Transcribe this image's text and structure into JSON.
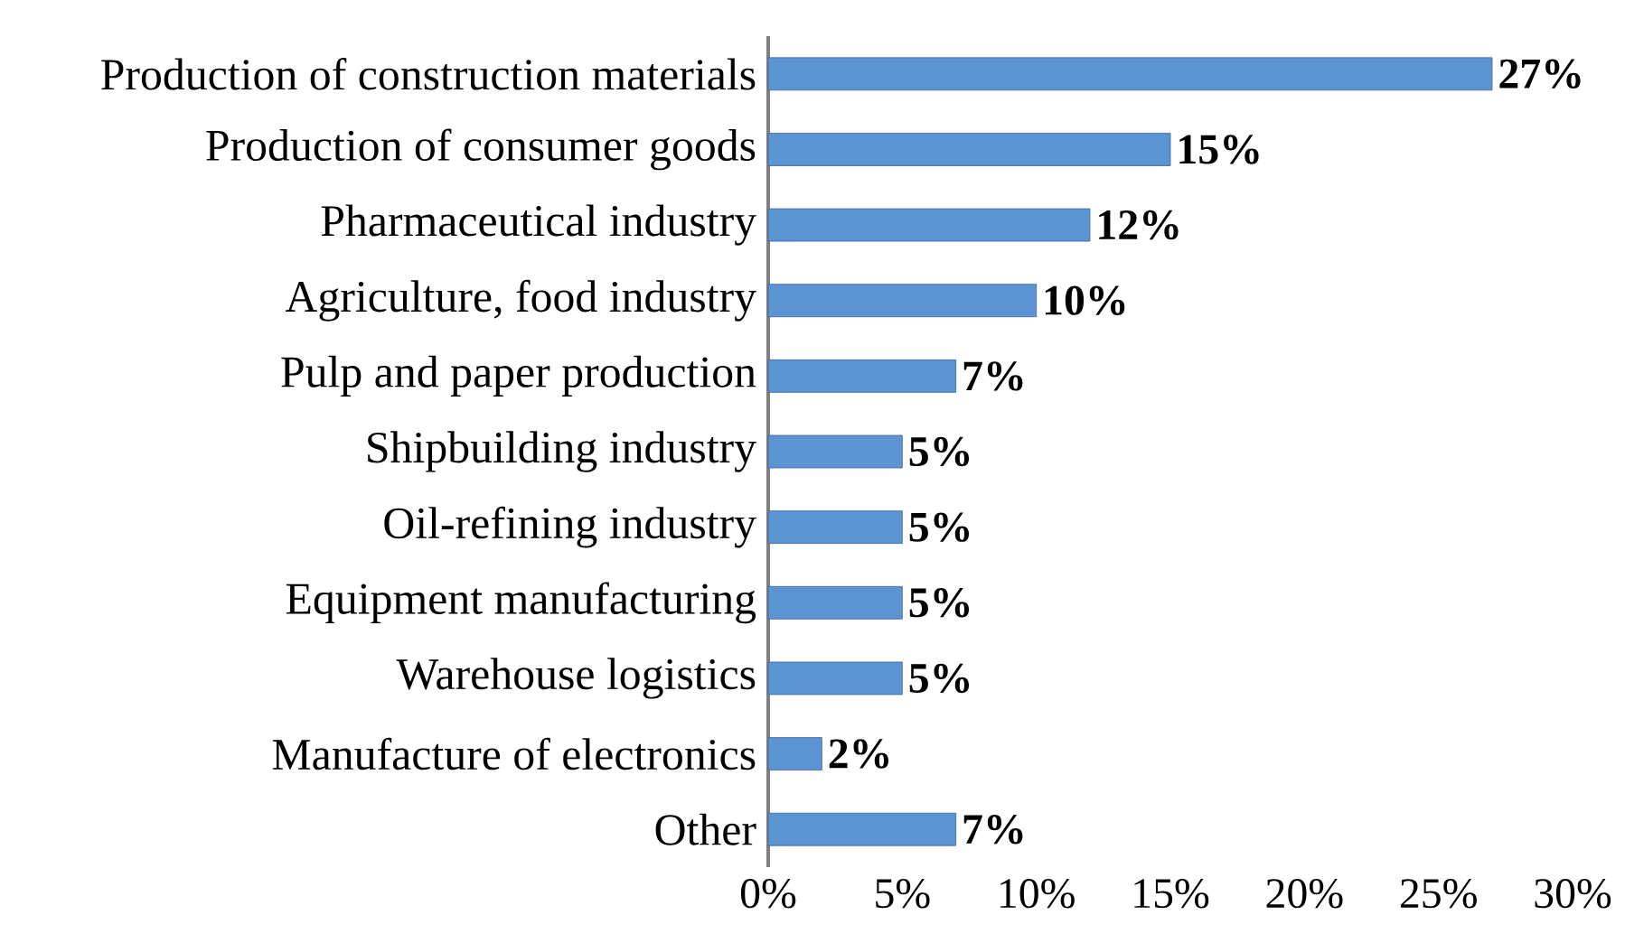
{
  "chart_data": {
    "type": "bar",
    "orientation": "horizontal",
    "categories": [
      "Production of construction materials",
      "Production of consumer goods",
      "Pharmaceutical industry",
      "Agriculture, food industry",
      "Pulp and paper production",
      "Shipbuilding industry",
      "Oil-refining industry",
      "Equipment manufacturing",
      "Warehouse logistics",
      "Manufacture of electronics",
      "Other"
    ],
    "values": [
      27,
      15,
      12,
      10,
      7,
      5,
      5,
      5,
      5,
      2,
      7
    ],
    "value_labels": [
      "27%",
      "15%",
      "12%",
      "10%",
      "7%",
      "5%",
      "5%",
      "5%",
      "5%",
      "2%",
      "7%"
    ],
    "color": "#5b93d3",
    "xlim": [
      0,
      30
    ],
    "xticks": [
      {
        "value": 0,
        "label": "0%"
      },
      {
        "value": 5,
        "label": "5%"
      },
      {
        "value": 10,
        "label": "10%"
      },
      {
        "value": 15,
        "label": "15%"
      },
      {
        "value": 20,
        "label": "20%"
      },
      {
        "value": 25,
        "label": "25%"
      },
      {
        "value": 30,
        "label": "30%"
      }
    ],
    "grid": false
  }
}
